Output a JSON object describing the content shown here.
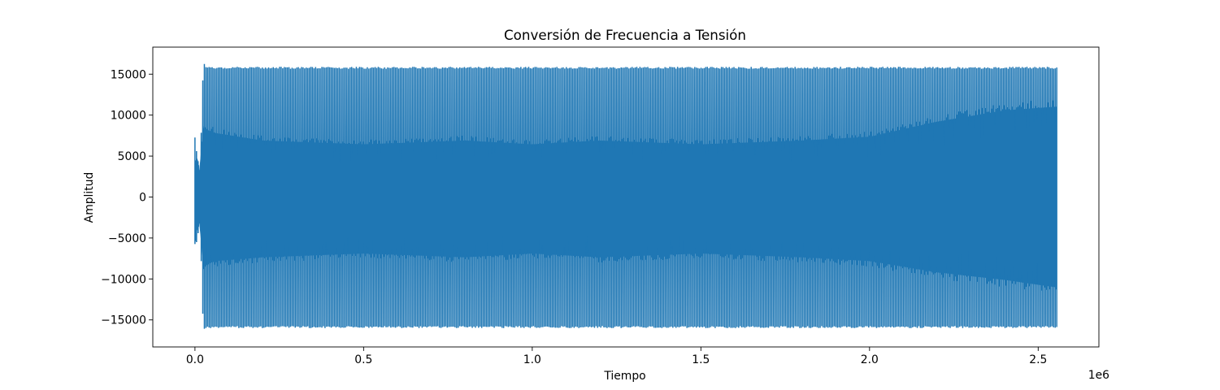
{
  "chart_data": {
    "type": "line",
    "title": "Conversión de Frecuencia a Tensión",
    "xlabel": "Tiempo",
    "ylabel": "Amplitud",
    "x_offset_label": "1e6",
    "xlim": [
      -125000,
      2680000
    ],
    "ylim": [
      -18300,
      18300
    ],
    "x_ticks": [
      0,
      500000,
      1000000,
      1500000,
      2000000,
      2500000
    ],
    "x_tick_labels": [
      "0.0",
      "0.5",
      "1.0",
      "1.5",
      "2.0",
      "2.5"
    ],
    "y_ticks": [
      -15000,
      -10000,
      -5000,
      0,
      5000,
      10000,
      15000
    ],
    "y_tick_labels": [
      "−15000",
      "−10000",
      "−5000",
      "0",
      "5000",
      "10000",
      "15000"
    ],
    "grid": false,
    "series": [
      {
        "color": "#1f77b4",
        "x_range": [
          0,
          2555000
        ],
        "envelope": {
          "x": [
            0,
            5000,
            15000,
            25000,
            30000,
            60000,
            200000,
            500000,
            800000,
            1000000,
            1200000,
            1500000,
            1800000,
            2000000,
            2200000,
            2400000,
            2555000
          ],
          "upper_peak": [
            7300,
            5500,
            3000,
            16800,
            16000,
            15900,
            15900,
            15900,
            15900,
            15900,
            15900,
            15900,
            15900,
            15900,
            15900,
            15900,
            15900
          ],
          "lower_peak": [
            -5800,
            -5500,
            -3000,
            -16700,
            -16000,
            -16000,
            -16000,
            -16000,
            -16000,
            -16000,
            -16000,
            -16000,
            -16000,
            -16000,
            -16000,
            -16000,
            -16000
          ],
          "upper_body": [
            5000,
            5500,
            3000,
            9500,
            9000,
            8500,
            7500,
            7000,
            7500,
            7000,
            7500,
            7000,
            7500,
            8000,
            10000,
            11500,
            12000
          ],
          "lower_body": [
            -5500,
            -5000,
            -3000,
            -9500,
            -9000,
            -8500,
            -8000,
            -7500,
            -8000,
            -7500,
            -8000,
            -7500,
            -8000,
            -8500,
            -10000,
            -11000,
            -12000
          ]
        }
      }
    ]
  }
}
